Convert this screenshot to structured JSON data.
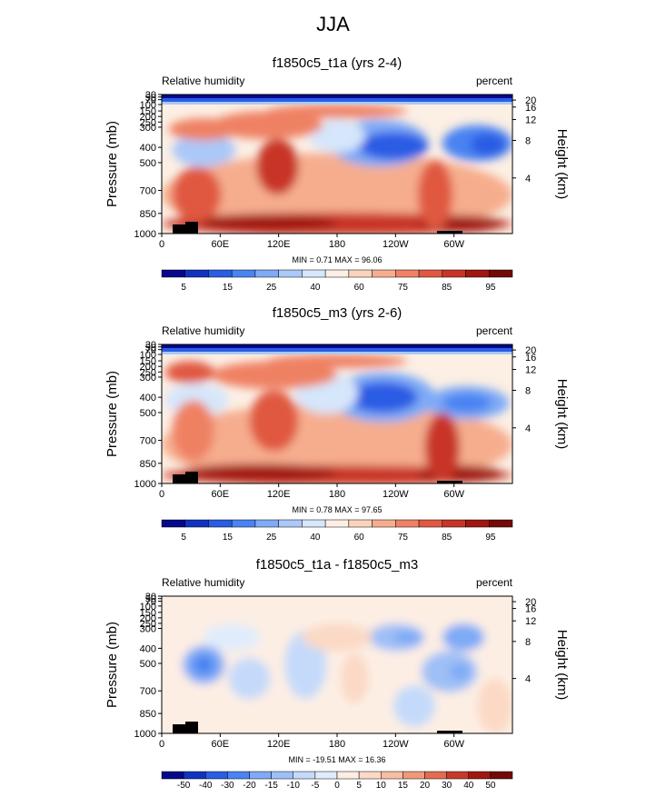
{
  "figure_title": "JJA",
  "colors": {
    "humidity_scale": [
      "#08088c",
      "#1033c0",
      "#2a5ce4",
      "#4a83f2",
      "#7eaaf6",
      "#aac8f8",
      "#d6e6fb",
      "#fcefe4",
      "#fbd3bd",
      "#f6ad8e",
      "#ef8164",
      "#e05840",
      "#c83426",
      "#a0180f",
      "#720a06"
    ],
    "difference_scale": [
      "#08088c",
      "#1033c0",
      "#2a5ce4",
      "#4a83f2",
      "#7eaaf6",
      "#9fbff7",
      "#c4dafa",
      "#e0ecfc",
      "#fdeee4",
      "#fbd9c5",
      "#f7bea2",
      "#f0997a",
      "#e36c50",
      "#c83a28",
      "#a0180f",
      "#720a06"
    ],
    "topography": "#000000"
  },
  "chart_data": [
    {
      "type": "heatmap",
      "title": "f1850c5_t1a (yrs 2-4)",
      "left_label": "Relative humidity",
      "right_label": "percent",
      "ylabel": "Pressure (mb)",
      "y2label": "Height (km)",
      "x_ticks": [
        "0",
        "60E",
        "120E",
        "180",
        "120W",
        "60W"
      ],
      "y_ticks": [
        "30",
        "50",
        "70",
        "100",
        "150",
        "200",
        "250",
        "300",
        "400",
        "500",
        "700",
        "850",
        "1000"
      ],
      "height_ticks": [
        "20",
        "16",
        "12",
        "8",
        "4"
      ],
      "min_max_text": "MIN =   0.71  MAX =  96.06",
      "colorbar": {
        "levels": [
          "5",
          "15",
          "25",
          "40",
          "60",
          "75",
          "85",
          "95"
        ]
      }
    },
    {
      "type": "heatmap",
      "title": "f1850c5_m3 (yrs 2-6)",
      "left_label": "Relative humidity",
      "right_label": "percent",
      "ylabel": "Pressure (mb)",
      "y2label": "Height (km)",
      "x_ticks": [
        "0",
        "60E",
        "120E",
        "180",
        "120W",
        "60W"
      ],
      "y_ticks": [
        "30",
        "50",
        "70",
        "100",
        "150",
        "200",
        "250",
        "300",
        "400",
        "500",
        "700",
        "850",
        "1000"
      ],
      "height_ticks": [
        "20",
        "16",
        "12",
        "8",
        "4"
      ],
      "min_max_text": "MIN =   0.78  MAX =  97.65",
      "colorbar": {
        "levels": [
          "5",
          "15",
          "25",
          "40",
          "60",
          "75",
          "85",
          "95"
        ]
      }
    },
    {
      "type": "heatmap",
      "title": "f1850c5_t1a - f1850c5_m3",
      "left_label": "Relative humidity",
      "right_label": "percent",
      "ylabel": "Pressure (mb)",
      "y2label": "Height (km)",
      "x_ticks": [
        "0",
        "60E",
        "120E",
        "180",
        "120W",
        "60W"
      ],
      "y_ticks": [
        "30",
        "50",
        "70",
        "100",
        "150",
        "200",
        "250",
        "300",
        "400",
        "500",
        "700",
        "850",
        "1000"
      ],
      "height_ticks": [
        "20",
        "16",
        "12",
        "8",
        "4"
      ],
      "min_max_text": "MIN = -19.51  MAX =  16.36",
      "colorbar": {
        "levels": [
          "-50",
          "-40",
          "-30",
          "-20",
          "-15",
          "-10",
          "-5",
          "0",
          "5",
          "10",
          "15",
          "20",
          "30",
          "40",
          "50"
        ]
      }
    }
  ]
}
